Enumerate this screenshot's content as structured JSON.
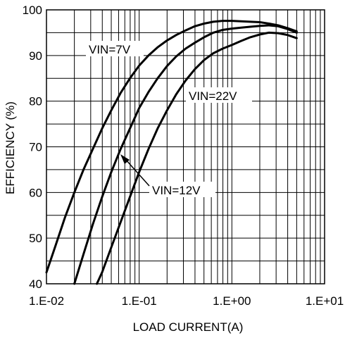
{
  "chart_data": {
    "type": "line",
    "title": "",
    "xlabel": "LOAD CURRENT(A)",
    "ylabel": "EFFICIENCY (%)",
    "x_scale": "log",
    "xlim": [
      0.01,
      10
    ],
    "ylim": [
      40,
      100
    ],
    "grid": true,
    "x_ticks": [
      0.01,
      0.1,
      1,
      10
    ],
    "x_tick_labels": [
      "1.E-02",
      "1.E-01",
      "1.E+00",
      "1.E+01"
    ],
    "y_ticks": [
      40,
      50,
      60,
      70,
      80,
      90,
      100
    ],
    "y_tick_labels": [
      "40",
      "50",
      "60",
      "70",
      "80",
      "90",
      "100"
    ],
    "series": [
      {
        "name": "VIN=7V",
        "x": [
          0.01,
          0.0126,
          0.0158,
          0.02,
          0.0251,
          0.0316,
          0.0398,
          0.0501,
          0.0631,
          0.0794,
          0.1,
          0.126,
          0.158,
          0.2,
          0.251,
          0.316,
          0.398,
          0.501,
          0.631,
          0.794,
          1.0,
          1.26,
          1.58,
          2.0,
          2.51,
          3.16,
          3.98,
          5.0
        ],
        "y": [
          42.5,
          48.5,
          54.5,
          60.0,
          65.0,
          69.5,
          74.0,
          78.0,
          81.8,
          85.0,
          87.8,
          90.0,
          91.8,
          93.3,
          94.5,
          95.5,
          96.4,
          97.0,
          97.4,
          97.6,
          97.6,
          97.5,
          97.4,
          97.3,
          97.0,
          96.6,
          96.0,
          95.3
        ]
      },
      {
        "name": "VIN=12V",
        "x": [
          0.02,
          0.0251,
          0.0316,
          0.0398,
          0.0501,
          0.0631,
          0.0794,
          0.1,
          0.126,
          0.158,
          0.2,
          0.251,
          0.316,
          0.398,
          0.501,
          0.631,
          0.794,
          1.0,
          1.26,
          1.58,
          2.0,
          2.51,
          3.16,
          3.98,
          5.0
        ],
        "y": [
          40.0,
          46.5,
          53.0,
          59.0,
          64.5,
          69.5,
          74.0,
          78.5,
          82.0,
          85.0,
          87.7,
          89.8,
          91.5,
          92.8,
          94.0,
          95.0,
          95.6,
          95.9,
          96.1,
          96.3,
          96.5,
          96.6,
          96.4,
          95.8,
          95.0
        ]
      },
      {
        "name": "VIN=22V",
        "x": [
          0.035,
          0.0398,
          0.0501,
          0.0631,
          0.0794,
          0.1,
          0.126,
          0.158,
          0.2,
          0.251,
          0.316,
          0.398,
          0.501,
          0.631,
          0.794,
          1.0,
          1.26,
          1.58,
          2.0,
          2.51,
          3.16,
          3.98,
          5.0
        ],
        "y": [
          40.0,
          42.5,
          48.0,
          53.5,
          59.0,
          64.5,
          69.5,
          74.0,
          78.0,
          81.5,
          84.5,
          87.0,
          89.0,
          90.5,
          91.5,
          92.3,
          93.2,
          94.0,
          94.6,
          95.0,
          94.9,
          94.5,
          93.8
        ]
      }
    ],
    "annotations": [
      {
        "text": "VIN=7V",
        "series": "VIN=7V"
      },
      {
        "text": "VIN=22V",
        "series": "VIN=22V"
      },
      {
        "text": "VIN=12V",
        "series": "VIN=12V",
        "arrow": true
      }
    ]
  }
}
